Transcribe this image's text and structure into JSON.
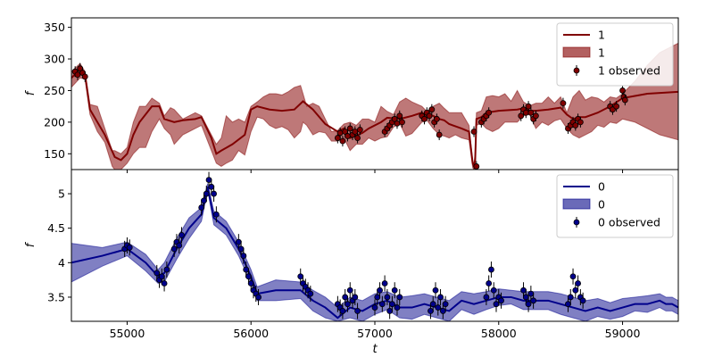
{
  "chart_data": [
    {
      "type": "line",
      "panel": "top",
      "ylabel": "f",
      "xlim": [
        54550,
        59450
      ],
      "ylim": [
        125,
        365
      ],
      "yticks": [
        150,
        200,
        250,
        300,
        350
      ],
      "legend_position": "top-right",
      "legend": [
        "1",
        "1",
        "1 observed"
      ],
      "colors": {
        "line": "#800000",
        "band": "#b36060",
        "marker": "#800000"
      },
      "mean": {
        "x": [
          54550,
          54620,
          54660,
          54700,
          54820,
          54900,
          54950,
          55000,
          55050,
          55100,
          55200,
          55260,
          55300,
          55380,
          55450,
          55550,
          55600,
          55680,
          55720,
          55760,
          55850,
          55950,
          56000,
          56050,
          56150,
          56250,
          56350,
          56420,
          56500,
          56600,
          56700,
          56750,
          56800,
          56900,
          56950,
          57050,
          57100,
          57200,
          57300,
          57380,
          57420,
          57470,
          57520,
          57560,
          57600,
          57700,
          57760,
          57790,
          57800,
          57810,
          57820,
          57860,
          57900,
          58000,
          58150,
          58200,
          58250,
          58300,
          58400,
          58500,
          58550,
          58600,
          58650,
          58700,
          58800,
          58900,
          59000,
          59200,
          59450
        ],
        "y": [
          270,
          283,
          275,
          220,
          180,
          145,
          140,
          150,
          180,
          200,
          225,
          225,
          205,
          200,
          203,
          205,
          208,
          175,
          150,
          155,
          165,
          180,
          220,
          225,
          220,
          218,
          220,
          233,
          220,
          197,
          185,
          190,
          175,
          183,
          190,
          200,
          207,
          205,
          210,
          215,
          210,
          210,
          205,
          203,
          197,
          190,
          185,
          135,
          130,
          140,
          205,
          208,
          215,
          218,
          220,
          222,
          218,
          218,
          220,
          223,
          212,
          205,
          208,
          208,
          215,
          225,
          238,
          245,
          248
        ]
      },
      "band": {
        "x": [
          54550,
          54620,
          54660,
          54700,
          54760,
          54820,
          54880,
          54900,
          54950,
          55000,
          55050,
          55100,
          55150,
          55200,
          55260,
          55300,
          55350,
          55380,
          55450,
          55500,
          55550,
          55600,
          55680,
          55720,
          55760,
          55800,
          55850,
          55900,
          55950,
          56000,
          56050,
          56100,
          56150,
          56200,
          56250,
          56300,
          56350,
          56400,
          56420,
          56450,
          56500,
          56550,
          56600,
          56650,
          56700,
          56750,
          56800,
          56850,
          56900,
          56950,
          57000,
          57050,
          57100,
          57150,
          57200,
          57250,
          57300,
          57380,
          57420,
          57470,
          57520,
          57560,
          57600,
          57650,
          57700,
          57760,
          57790,
          57800,
          57810,
          57820,
          57860,
          57900,
          57950,
          58000,
          58050,
          58100,
          58150,
          58200,
          58250,
          58300,
          58350,
          58400,
          58450,
          58500,
          58550,
          58600,
          58650,
          58700,
          58750,
          58800,
          58850,
          58900,
          58950,
          59000,
          59100,
          59200,
          59300,
          59450
        ],
        "upper": [
          280,
          293,
          280,
          228,
          225,
          190,
          155,
          155,
          150,
          160,
          200,
          225,
          225,
          238,
          230,
          210,
          223,
          220,
          205,
          210,
          215,
          210,
          180,
          165,
          175,
          210,
          200,
          205,
          200,
          225,
          232,
          240,
          245,
          245,
          243,
          248,
          255,
          258,
          245,
          225,
          230,
          225,
          205,
          185,
          187,
          197,
          200,
          195,
          205,
          205,
          200,
          225,
          217,
          212,
          232,
          238,
          232,
          225,
          217,
          225,
          230,
          222,
          215,
          215,
          215,
          195,
          138,
          135,
          150,
          215,
          218,
          240,
          242,
          240,
          245,
          233,
          250,
          232,
          226,
          230,
          230,
          240,
          230,
          240,
          215,
          240,
          250,
          235,
          240,
          238,
          232,
          240,
          238,
          245,
          265,
          290,
          310,
          325
        ],
        "lower": [
          255,
          270,
          268,
          212,
          185,
          168,
          130,
          125,
          125,
          135,
          150,
          160,
          160,
          185,
          205,
          190,
          180,
          165,
          180,
          185,
          190,
          195,
          155,
          135,
          130,
          135,
          140,
          155,
          148,
          185,
          208,
          205,
          195,
          190,
          193,
          188,
          175,
          185,
          200,
          195,
          180,
          185,
          183,
          170,
          170,
          175,
          155,
          165,
          165,
          175,
          170,
          175,
          177,
          192,
          198,
          178,
          182,
          200,
          203,
          190,
          180,
          178,
          175,
          180,
          175,
          172,
          128,
          125,
          130,
          195,
          198,
          190,
          185,
          190,
          200,
          200,
          200,
          210,
          212,
          190,
          200,
          195,
          202,
          205,
          190,
          180,
          175,
          180,
          185,
          195,
          192,
          200,
          198,
          205,
          200,
          190,
          180,
          172
        ]
      },
      "observed": {
        "x": [
          54580,
          54600,
          54620,
          54640,
          54660,
          56700,
          56720,
          56740,
          56760,
          56780,
          56800,
          56820,
          56840,
          56860,
          56880,
          57080,
          57100,
          57120,
          57140,
          57160,
          57180,
          57200,
          57220,
          57380,
          57400,
          57420,
          57440,
          57460,
          57480,
          57500,
          57520,
          57800,
          57820,
          57860,
          57880,
          57900,
          57920,
          58180,
          58200,
          58220,
          58240,
          58260,
          58280,
          58300,
          58520,
          58560,
          58580,
          58600,
          58620,
          58640,
          58660,
          58900,
          58920,
          58950,
          59000,
          59010,
          59020
        ],
        "y": [
          280,
          275,
          285,
          278,
          272,
          175,
          183,
          170,
          185,
          178,
          190,
          180,
          185,
          175,
          188,
          185,
          190,
          195,
          200,
          205,
          198,
          210,
          200,
          210,
          205,
          215,
          210,
          220,
          200,
          205,
          180,
          185,
          130,
          200,
          205,
          210,
          215,
          210,
          220,
          215,
          225,
          215,
          205,
          210,
          230,
          190,
          195,
          200,
          195,
          205,
          200,
          225,
          220,
          225,
          250,
          240,
          235
        ]
      }
    },
    {
      "type": "line",
      "panel": "bottom",
      "ylabel": "f",
      "xlabel": "t",
      "xlim": [
        54550,
        59450
      ],
      "ylim": [
        3.15,
        5.35
      ],
      "xticks": [
        55000,
        56000,
        57000,
        58000,
        59000
      ],
      "yticks": [
        3.5,
        4.0,
        4.5,
        5.0
      ],
      "legend_position": "top-right",
      "legend": [
        "0",
        "0",
        "0 observed"
      ],
      "colors": {
        "line": "#00008b",
        "band": "#6a6ab8",
        "marker": "#00008b"
      },
      "mean": {
        "x": [
          54550,
          54800,
          55000,
          55150,
          55250,
          55300,
          55400,
          55500,
          55600,
          55650,
          55700,
          55800,
          55900,
          56000,
          56050,
          56200,
          56400,
          56500,
          56600,
          56700,
          56800,
          56900,
          57000,
          57100,
          57200,
          57300,
          57400,
          57500,
          57600,
          57700,
          57800,
          57900,
          58000,
          58100,
          58200,
          58300,
          58400,
          58500,
          58600,
          58700,
          58800,
          58900,
          59000,
          59100,
          59200,
          59300,
          59350,
          59400,
          59450
        ],
        "y": [
          4.0,
          4.1,
          4.2,
          4.0,
          3.8,
          3.85,
          4.2,
          4.5,
          4.7,
          5.1,
          4.65,
          4.5,
          4.2,
          3.8,
          3.55,
          3.6,
          3.6,
          3.45,
          3.35,
          3.2,
          3.35,
          3.3,
          3.4,
          3.45,
          3.35,
          3.35,
          3.4,
          3.35,
          3.3,
          3.45,
          3.4,
          3.45,
          3.5,
          3.5,
          3.45,
          3.45,
          3.45,
          3.4,
          3.35,
          3.3,
          3.35,
          3.3,
          3.35,
          3.4,
          3.4,
          3.45,
          3.4,
          3.4,
          3.35
        ]
      },
      "band": {
        "x": [
          54550,
          54800,
          55000,
          55150,
          55250,
          55300,
          55400,
          55500,
          55600,
          55650,
          55700,
          55800,
          55900,
          56000,
          56050,
          56200,
          56400,
          56500,
          56600,
          56700,
          56800,
          56900,
          57000,
          57100,
          57200,
          57300,
          57400,
          57500,
          57600,
          57700,
          57800,
          57900,
          58000,
          58100,
          58200,
          58300,
          58400,
          58500,
          58600,
          58700,
          58800,
          58900,
          59000,
          59100,
          59200,
          59300,
          59350,
          59400,
          59450
        ],
        "upper": [
          4.28,
          4.22,
          4.3,
          4.12,
          3.9,
          4.0,
          4.35,
          4.65,
          4.8,
          5.15,
          4.75,
          4.6,
          4.3,
          3.9,
          3.65,
          3.75,
          3.72,
          3.6,
          3.5,
          3.35,
          3.5,
          3.45,
          3.55,
          3.58,
          3.5,
          3.52,
          3.55,
          3.5,
          3.45,
          3.58,
          3.55,
          3.58,
          3.62,
          3.6,
          3.58,
          3.58,
          3.58,
          3.55,
          3.5,
          3.45,
          3.48,
          3.42,
          3.48,
          3.5,
          3.52,
          3.55,
          3.5,
          3.5,
          3.45
        ],
        "lower": [
          3.72,
          3.95,
          4.1,
          3.88,
          3.7,
          3.72,
          4.05,
          4.35,
          4.6,
          5.05,
          4.55,
          4.4,
          4.1,
          3.7,
          3.45,
          3.45,
          3.48,
          3.3,
          3.2,
          3.15,
          3.2,
          3.15,
          3.25,
          3.32,
          3.2,
          3.18,
          3.25,
          3.2,
          3.15,
          3.32,
          3.25,
          3.32,
          3.38,
          3.4,
          3.32,
          3.32,
          3.32,
          3.25,
          3.2,
          3.15,
          3.22,
          3.18,
          3.22,
          3.3,
          3.28,
          3.35,
          3.3,
          3.3,
          3.25
        ]
      },
      "observed": {
        "x": [
          54980,
          55000,
          55020,
          55240,
          55260,
          55280,
          55300,
          55320,
          55380,
          55400,
          55420,
          55440,
          55600,
          55620,
          55640,
          55660,
          55680,
          55700,
          55720,
          55900,
          55920,
          55940,
          55960,
          55980,
          56000,
          56020,
          56040,
          56060,
          56400,
          56420,
          56440,
          56460,
          56480,
          56700,
          56720,
          56740,
          56760,
          56780,
          56800,
          56820,
          56840,
          56860,
          57000,
          57020,
          57040,
          57060,
          57080,
          57100,
          57120,
          57140,
          57160,
          57180,
          57200,
          57450,
          57470,
          57490,
          57510,
          57530,
          57550,
          57570,
          57900,
          57920,
          57940,
          57960,
          57980,
          58000,
          58020,
          58200,
          58220,
          58240,
          58260,
          58280,
          58560,
          58580,
          58600,
          58620,
          58640,
          58660,
          58680
        ],
        "y": [
          4.2,
          4.25,
          4.22,
          3.85,
          3.75,
          3.8,
          3.7,
          3.9,
          4.2,
          4.3,
          4.25,
          4.4,
          4.8,
          4.9,
          5.0,
          5.2,
          5.1,
          5.0,
          4.7,
          4.3,
          4.2,
          4.1,
          3.9,
          3.8,
          3.7,
          3.6,
          3.55,
          3.5,
          3.8,
          3.7,
          3.65,
          3.6,
          3.55,
          3.4,
          3.35,
          3.3,
          3.5,
          3.4,
          3.6,
          3.45,
          3.5,
          3.3,
          3.35,
          3.5,
          3.6,
          3.4,
          3.7,
          3.5,
          3.3,
          3.4,
          3.6,
          3.35,
          3.5,
          3.3,
          3.4,
          3.6,
          3.35,
          3.5,
          3.3,
          3.4,
          3.5,
          3.7,
          3.9,
          3.6,
          3.4,
          3.5,
          3.45,
          3.6,
          3.5,
          3.4,
          3.55,
          3.45,
          3.4,
          3.5,
          3.8,
          3.6,
          3.7,
          3.5,
          3.45
        ]
      }
    }
  ]
}
